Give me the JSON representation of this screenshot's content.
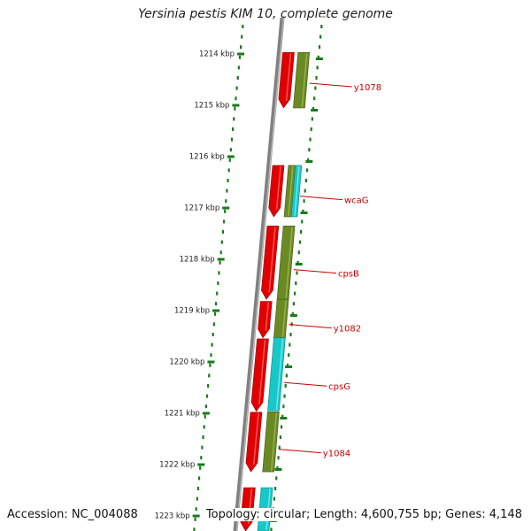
{
  "title": "Yersinia pestis KIM 10, complete genome",
  "footer": {
    "accession": "Accession: NC_004088",
    "summary": "Topology: circular; Length: 4,600,755 bp; Genes: 4,148"
  },
  "colors": {
    "backbone": "#808080",
    "tick": "#1a7a1a",
    "forward_gene": "#e00000",
    "reverse_olive": "#6b8a23",
    "reverse_cyan": "#18c8c8",
    "label": "#cc0000"
  },
  "chart_data": {
    "type": "genome-map",
    "axis_unit": "kbp",
    "axis_ticks": [
      {
        "kbp": 1214,
        "label": "1214 kbp"
      },
      {
        "kbp": 1215,
        "label": "1215 kbp"
      },
      {
        "kbp": 1216,
        "label": "1216 kbp"
      },
      {
        "kbp": 1217,
        "label": "1217 kbp"
      },
      {
        "kbp": 1218,
        "label": "1218 kbp"
      },
      {
        "kbp": 1219,
        "label": "1219 kbp"
      },
      {
        "kbp": 1220,
        "label": "1220 kbp"
      },
      {
        "kbp": 1221,
        "label": "1221 kbp"
      },
      {
        "kbp": 1222,
        "label": "1222 kbp"
      },
      {
        "kbp": 1223,
        "label": "1223 kbp"
      }
    ],
    "forward_genes": [
      {
        "start": 1213.97,
        "end": 1215.05
      },
      {
        "start": 1216.17,
        "end": 1217.17
      },
      {
        "start": 1217.35,
        "end": 1218.78
      },
      {
        "start": 1218.82,
        "end": 1219.53
      },
      {
        "start": 1219.55,
        "end": 1220.96
      },
      {
        "start": 1220.98,
        "end": 1222.14
      },
      {
        "start": 1222.45,
        "end": 1223.4
      }
    ],
    "reverse_genes": [
      {
        "start": 1213.97,
        "end": 1215.05,
        "color": "olive",
        "label": "y1078",
        "label_kbp": 1214.57
      },
      {
        "start": 1216.17,
        "end": 1217.17,
        "color": "olive",
        "label": "",
        "label_kbp": null
      },
      {
        "start": 1216.17,
        "end": 1217.17,
        "color": "cyan",
        "label": "wcaG",
        "label_kbp": 1216.77
      },
      {
        "start": 1217.35,
        "end": 1218.78,
        "color": "olive",
        "label": "cpsB",
        "label_kbp": 1218.2
      },
      {
        "start": 1218.78,
        "end": 1219.53,
        "color": "olive",
        "label": "y1082",
        "label_kbp": 1219.27
      },
      {
        "start": 1219.53,
        "end": 1220.95,
        "color": "cyan",
        "label": "cpsG",
        "label_kbp": 1220.4
      },
      {
        "start": 1220.97,
        "end": 1222.14,
        "color": "olive",
        "label": "y1084",
        "label_kbp": 1221.7
      },
      {
        "start": 1222.45,
        "end": 1223.4,
        "color": "cyan",
        "label": "",
        "label_kbp": null
      }
    ]
  }
}
